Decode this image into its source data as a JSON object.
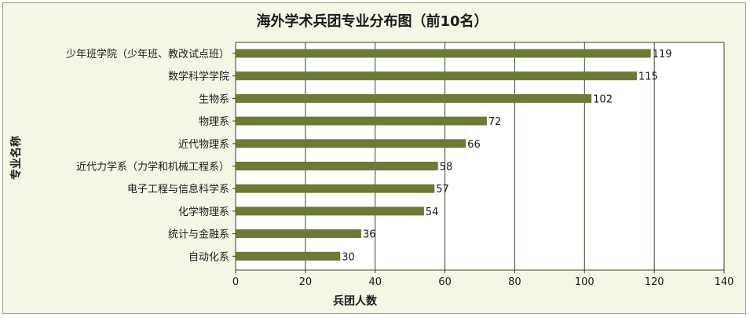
{
  "chart_data": {
    "type": "bar",
    "orientation": "horizontal",
    "title": "海外学术兵团专业分布图（前10名）",
    "xlabel": "兵团人数",
    "ylabel": "专业名称",
    "xlim": [
      0,
      140
    ],
    "xticks": [
      0,
      20,
      40,
      60,
      80,
      100,
      120,
      140
    ],
    "grid": "vertical",
    "legend": "none",
    "categories": [
      "少年班学院（少年班、教改试点班）",
      "数学科学学院",
      "生物系",
      "物理系",
      "近代物理系",
      "近代力学系（力学和机械工程系）",
      "电子工程与信息科学系",
      "化学物理系",
      "统计与金融系",
      "自动化系"
    ],
    "values": [
      119,
      115,
      102,
      72,
      66,
      58,
      57,
      54,
      36,
      30
    ],
    "colors": {
      "bar": "#6b7a34",
      "plot_background": "#ffffff",
      "grid": "#2f4a2a",
      "frame_background": "#f4f6e6"
    }
  }
}
